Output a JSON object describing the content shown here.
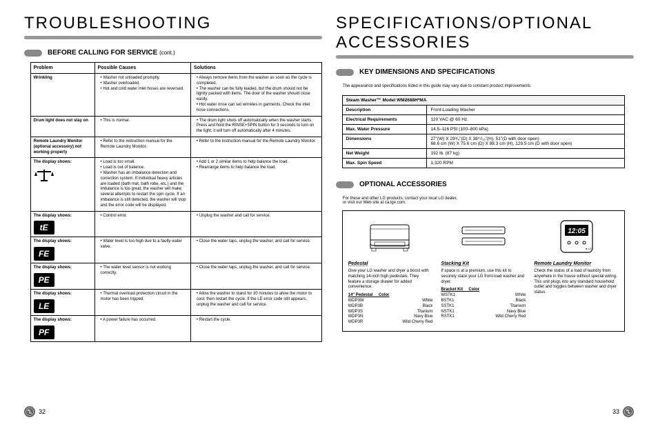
{
  "left": {
    "title": "TROUBLESHOOTING",
    "section": "BEFORE CALLING FOR SERVICE",
    "cont": "(cont.)",
    "headers": [
      "Problem",
      "Possible Causes",
      "Solutions"
    ],
    "rows": [
      {
        "problem": "Wrinkling",
        "icon": null,
        "causes": [
          "Washer not unloaded promptly.",
          "Washer overloaded.",
          "Hot and cold water inlet hoses are reversed."
        ],
        "solutions": [
          "Always remove items from the washer as soon as the cycle is completed.",
          "The washer can be fully loaded, but the drum should not be tightly packed with items. The door of the washer should close easily.",
          "Hot water rinse can set wrinkles in garments. Check the inlet hose connections."
        ]
      },
      {
        "problem": "Drum light does not stay on",
        "icon": null,
        "causes": [
          "This is normal."
        ],
        "solutions": [
          "The drum light shuts off automatically when the washer starts. Press and hold the RINSE+SPIN button for 3 seconds to turn on the light; it will turn off automatically after 4 minutes."
        ]
      },
      {
        "problem": "Remote Laundry Monitor (optional accessory) not working properly",
        "icon": null,
        "causes": [
          "Refer to the instruction manual for the Remote Laundry Monitor."
        ],
        "solutions": [
          "Refer to the instruction manual for the Remote Laundry Monitor."
        ]
      },
      {
        "problem": "The display shows:",
        "icon": "balance",
        "causes": [
          "Load is too small.",
          "Load is out of balance.",
          "Washer has an imbalance detection and correction system. If individual heavy articles are loaded (bath mat, bath robe, etc.) and the imbalance is too great, the washer will make several attempts to restart the spin cycle. If an imbalance is still detected, the washer will stop and the error code will be displayed."
        ],
        "solutions": [
          "Add 1 or 2 similar items to help balance the load.",
          "Rearrange items to help balance the load."
        ]
      },
      {
        "problem": "The display shows:",
        "icon": "tE",
        "causes": [
          "Control error."
        ],
        "solutions": [
          "Unplug the washer and call for service."
        ]
      },
      {
        "problem": "The display shows:",
        "icon": "FE",
        "causes": [
          "Water level is too high due to a faulty water valve."
        ],
        "solutions": [
          "Close the water taps, unplug the washer, and call for service."
        ]
      },
      {
        "problem": "The display shows:",
        "icon": "PE",
        "causes": [
          "The water level sensor is not working correctly."
        ],
        "solutions": [
          "Close the water taps, unplug the washer, and call for service."
        ]
      },
      {
        "problem": "The display shows:",
        "icon": "LE",
        "causes": [
          "Thermal overload protection circuit in the motor has been tripped."
        ],
        "solutions": [
          "Allow the washer to stand for 30 minutes to allow the motor to cool; then restart the cycle. If the LE error code still appears, unplug the washer and call for service."
        ]
      },
      {
        "problem": "The display shows:",
        "icon": "PF",
        "causes": [
          "A power failure has occurred."
        ],
        "solutions": [
          "Restart the cycle."
        ]
      }
    ],
    "page_num": "32"
  },
  "right": {
    "title": "SPECIFICATIONS/OPTIONAL ACCESSORIES",
    "spec_section": "KEY DIMENSIONS AND SPECIFICATIONS",
    "spec_intro": "The appearance and specifications listed in this guide may vary due to constant product improvements.",
    "model_label": "Steam Washer™ Model WM2688H*MA",
    "spec_rows": [
      {
        "k": "Description",
        "v": "Front-Loading Washer"
      },
      {
        "k": "Electrical Requirements",
        "v": "120 VAC @ 60 Hz."
      },
      {
        "k": "Max. Water Pressure",
        "v": "14.5–116 PSI (100–800 kPa)"
      },
      {
        "k": "Dimensions",
        "v": "27\"(W) X 29³/₄\"(D) X 38¹¹/₁₆\"(H), 51\"(D with door open)\n68.6 cm (W) X 75.6 cm (D) X 98.3 cm (H), 129.5 cm (D with door open)"
      },
      {
        "k": "Net Weight",
        "v": "192 lb. (87 kg)"
      },
      {
        "k": "Max. Spin Speed",
        "v": "1,320 RPM"
      }
    ],
    "acc_section": "OPTIONAL ACCESSORIES",
    "acc_intro": "For these and other LG products, contact your local LG dealer,\nor visit our Web site at ca.lge.com.",
    "pedestal": {
      "title": "Pedestal",
      "desc": "Give your LG washer and dryer a boost with matching 14-inch high pedestals. They feature a storage drawer for added convenience.",
      "head": "14\" Pedestal     Color",
      "items": [
        [
          "WDP3W",
          "White"
        ],
        [
          "WDP3B",
          "Black"
        ],
        [
          "WDP3S",
          "Titanium"
        ],
        [
          "WDP3N",
          "Navy Blue"
        ],
        [
          "WDP3R",
          "Wild Cherry Red"
        ]
      ]
    },
    "stacking": {
      "title": "Stacking Kit",
      "desc": "If space is at a premium, use this kit to securely stack your LG front-load washer and dryer.",
      "head": "Bracket Kit     Color",
      "items": [
        [
          "WSTK1",
          "White"
        ],
        [
          "BSTK1",
          "Black"
        ],
        [
          "SSTK1",
          "Titanium"
        ],
        [
          "NSTK1",
          "Navy Blue"
        ],
        [
          "RSTK1",
          "Wild Cherry Red"
        ]
      ]
    },
    "monitor": {
      "title": "Remote Laundry Monitor",
      "desc": "Check the status of a load of laundry from anywhere in the house without special wiring. This unit plugs into any standard household outlet and toggles between washer and dryer status."
    },
    "page_num": "33"
  }
}
